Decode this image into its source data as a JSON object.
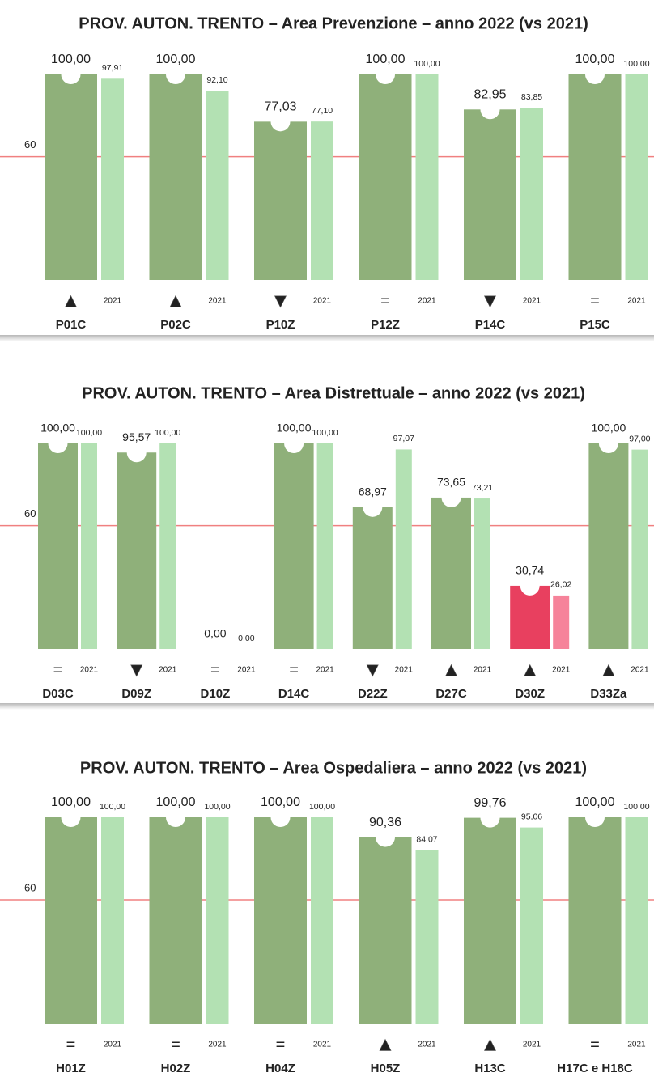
{
  "chart_data": [
    {
      "type": "bar",
      "title": "PROV. AUTON. TRENTO  – Area Prevenzione – anno 2022 (vs 2021)",
      "categories": [
        "P01C",
        "P02C",
        "P10Z",
        "P12Z",
        "P14C",
        "P15C"
      ],
      "trends": [
        "▲",
        "▲",
        "▼",
        "=",
        "▼",
        "="
      ],
      "series": [
        {
          "colors": [
            "#8fb07a",
            "#8fb07a",
            "#8fb07a",
            "#8fb07a",
            "#8fb07a",
            "#8fb07a"
          ],
          "values": [
            100,
            100,
            77.03,
            100,
            82.95,
            100
          ],
          "value_labels": [
            "100,00",
            "100,00",
            "77,03",
            "100,00",
            "82,95",
            "100,00"
          ]
        },
        {
          "name": "2021",
          "colors": [
            "#b3e1b3",
            "#b3e1b3",
            "#b3e1b3",
            "#b3e1b3",
            "#b3e1b3",
            "#b3e1b3"
          ],
          "values": [
            97.91,
            92.1,
            77.1,
            100,
            83.85,
            100
          ],
          "value_labels": [
            "97,91",
            "92,10",
            "77,10",
            "100,00",
            "83,85",
            "100,00"
          ]
        }
      ],
      "ylim": [
        0,
        100
      ],
      "yticks": [
        60
      ],
      "grid": true,
      "grid_color": "#f08080"
    },
    {
      "type": "bar",
      "title": "PROV. AUTON. TRENTO  – Area Distrettuale – anno 2022 (vs 2021)",
      "categories": [
        "D03C",
        "D09Z",
        "D10Z",
        "D14C",
        "D22Z",
        "D27C",
        "D30Z",
        "D33Za"
      ],
      "trends": [
        "=",
        "▼",
        "=",
        "=",
        "▼",
        "▲",
        "▲",
        "▲"
      ],
      "series": [
        {
          "colors": [
            "#8fb07a",
            "#8fb07a",
            "#8fb07a",
            "#8fb07a",
            "#8fb07a",
            "#8fb07a",
            "#e8405f",
            "#8fb07a"
          ],
          "values": [
            100,
            95.57,
            0,
            100,
            68.97,
            73.65,
            30.74,
            100
          ],
          "value_labels": [
            "100,00",
            "95,57",
            "0,00",
            "100,00",
            "68,97",
            "73,65",
            "30,74",
            "100,00"
          ]
        },
        {
          "name": "2021",
          "colors": [
            "#b3e1b3",
            "#b3e1b3",
            "#b3e1b3",
            "#b3e1b3",
            "#b3e1b3",
            "#b3e1b3",
            "#f6839a",
            "#b3e1b3"
          ],
          "values": [
            100,
            100,
            0,
            100,
            97.07,
            73.21,
            26.02,
            97.0
          ],
          "value_labels": [
            "100,00",
            "100,00",
            "0,00",
            "100,00",
            "97,07",
            "73,21",
            "26,02",
            "97,00"
          ]
        }
      ],
      "ylim": [
        0,
        100
      ],
      "yticks": [
        60
      ],
      "grid": true,
      "grid_color": "#f08080"
    },
    {
      "type": "bar",
      "title": "PROV. AUTON. TRENTO  – Area Ospedaliera – anno 2022 (vs 2021)",
      "categories": [
        "H01Z",
        "H02Z",
        "H04Z",
        "H05Z",
        "H13C",
        "H17C e H18C"
      ],
      "trends": [
        "=",
        "=",
        "=",
        "▲",
        "▲",
        "="
      ],
      "series": [
        {
          "colors": [
            "#8fb07a",
            "#8fb07a",
            "#8fb07a",
            "#8fb07a",
            "#8fb07a",
            "#8fb07a"
          ],
          "values": [
            100,
            100,
            100,
            90.36,
            99.76,
            100
          ],
          "value_labels": [
            "100,00",
            "100,00",
            "100,00",
            "90,36",
            "99,76",
            "100,00"
          ]
        },
        {
          "name": "2021",
          "colors": [
            "#b3e1b3",
            "#b3e1b3",
            "#b3e1b3",
            "#b3e1b3",
            "#b3e1b3",
            "#b3e1b3"
          ],
          "values": [
            100,
            100,
            100,
            84.07,
            95.06,
            100
          ],
          "value_labels": [
            "100,00",
            "100,00",
            "100,00",
            "84,07",
            "95,06",
            "100,00"
          ]
        }
      ],
      "ylim": [
        0,
        100
      ],
      "yticks": [
        60
      ],
      "grid": true,
      "grid_color": "#f08080"
    }
  ]
}
